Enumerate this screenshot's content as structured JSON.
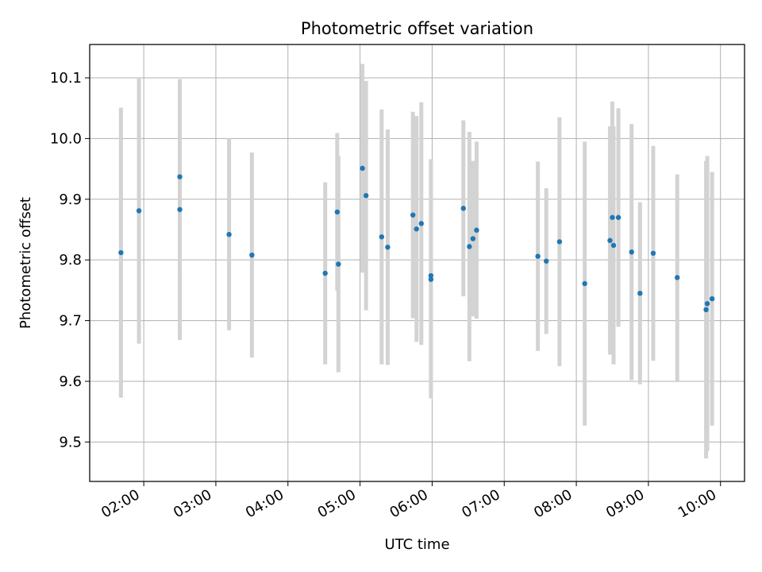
{
  "chart_data": {
    "type": "scatter",
    "title": "Photometric offset variation",
    "xlabel": "UTC time",
    "ylabel": "Photometric offset",
    "grid": true,
    "xlim": [
      "01:15",
      "10:20"
    ],
    "ylim": [
      9.435,
      10.155
    ],
    "x_ticks": [
      "02:00",
      "03:00",
      "04:00",
      "05:00",
      "06:00",
      "07:00",
      "08:00",
      "09:00",
      "10:00"
    ],
    "y_ticks": [
      9.5,
      9.6,
      9.7,
      9.8,
      9.9,
      10.0,
      10.1
    ],
    "y_tick_labels": [
      "9.5",
      "9.6",
      "9.7",
      "9.8",
      "9.9",
      "10.0",
      "10.1"
    ],
    "point_color": "#1f77b4",
    "errorbar_color": "#d3d3d3",
    "points": [
      {
        "x": "01:41",
        "y": 9.812,
        "err": 0.239
      },
      {
        "x": "01:56",
        "y": 9.881,
        "err": 0.219
      },
      {
        "x": "02:30",
        "y": 9.937,
        "err": 0.155
      },
      {
        "x": "02:30",
        "y": 9.883,
        "err": 0.215
      },
      {
        "x": "03:11",
        "y": 9.842,
        "err": 0.158
      },
      {
        "x": "03:30",
        "y": 9.808,
        "err": 0.169
      },
      {
        "x": "04:31",
        "y": 9.778,
        "err": 0.15
      },
      {
        "x": "04:41",
        "y": 9.879,
        "err": 0.13
      },
      {
        "x": "04:42",
        "y": 9.793,
        "err": 0.178
      },
      {
        "x": "05:02",
        "y": 9.951,
        "err": 0.172
      },
      {
        "x": "05:05",
        "y": 9.906,
        "err": 0.189
      },
      {
        "x": "05:18",
        "y": 9.838,
        "err": 0.21
      },
      {
        "x": "05:23",
        "y": 9.821,
        "err": 0.194
      },
      {
        "x": "05:44",
        "y": 9.874,
        "err": 0.17
      },
      {
        "x": "05:47",
        "y": 9.851,
        "err": 0.186
      },
      {
        "x": "05:51",
        "y": 9.86,
        "err": 0.2
      },
      {
        "x": "05:59",
        "y": 9.768,
        "err": 0.196
      },
      {
        "x": "05:59",
        "y": 9.774,
        "err": 0.192
      },
      {
        "x": "06:26",
        "y": 9.885,
        "err": 0.145
      },
      {
        "x": "06:31",
        "y": 9.822,
        "err": 0.189
      },
      {
        "x": "06:34",
        "y": 9.835,
        "err": 0.128
      },
      {
        "x": "06:37",
        "y": 9.849,
        "err": 0.146
      },
      {
        "x": "07:28",
        "y": 9.806,
        "err": 0.156
      },
      {
        "x": "07:35",
        "y": 9.798,
        "err": 0.12
      },
      {
        "x": "07:46",
        "y": 9.83,
        "err": 0.205
      },
      {
        "x": "08:07",
        "y": 9.761,
        "err": 0.234
      },
      {
        "x": "08:28",
        "y": 9.832,
        "err": 0.188
      },
      {
        "x": "08:30",
        "y": 9.87,
        "err": 0.191
      },
      {
        "x": "08:31",
        "y": 9.824,
        "err": 0.196
      },
      {
        "x": "08:35",
        "y": 9.87,
        "err": 0.18
      },
      {
        "x": "08:46",
        "y": 9.813,
        "err": 0.211
      },
      {
        "x": "08:53",
        "y": 9.745,
        "err": 0.15
      },
      {
        "x": "09:04",
        "y": 9.811,
        "err": 0.177
      },
      {
        "x": "09:24",
        "y": 9.771,
        "err": 0.17
      },
      {
        "x": "09:48",
        "y": 9.718,
        "err": 0.245
      },
      {
        "x": "09:49",
        "y": 9.728,
        "err": 0.243
      },
      {
        "x": "09:53",
        "y": 9.736,
        "err": 0.209
      }
    ]
  }
}
